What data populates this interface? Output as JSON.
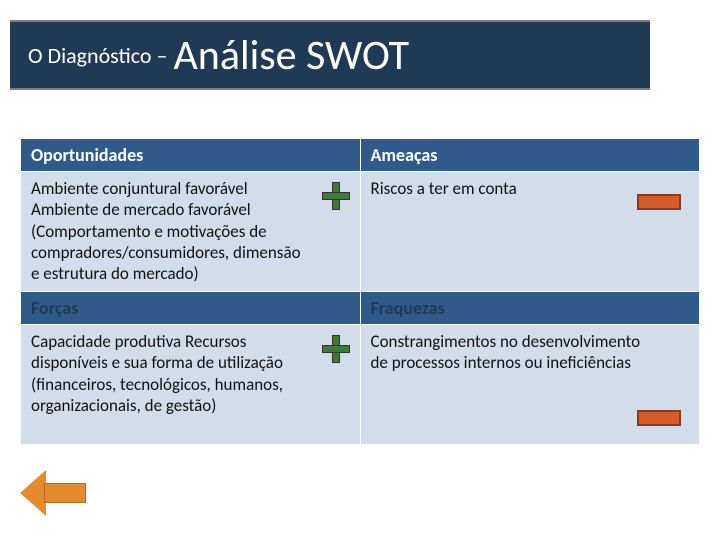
{
  "title": {
    "prefix": "O Diagnóstico –",
    "main": "Análise SWOT"
  },
  "colors": {
    "title_bg": "#1f3a54",
    "header_bg": "#2f5a8a",
    "cell_bg": "#d3dde9",
    "plus": "#3f7a3a",
    "minus": "#d65a2a",
    "arrow": "#e68a2e"
  },
  "swot": {
    "row1": {
      "left_header": "Oportunidades",
      "right_header": "Ameaças",
      "left_content": "Ambiente conjuntural favorável Ambiente de mercado favorável (Comportamento e motivações de compradores/consumidores, dimensão e estrutura do mercado)",
      "right_content": "Riscos a ter em conta"
    },
    "row2": {
      "left_header": "Forças",
      "right_header": "Fraquezas",
      "left_content": "Capacidade produtiva Recursos disponíveis e sua forma de utilização (financeiros, tecnológicos, humanos, organizacionais, de gestão)",
      "right_content": "Constrangimentos no desenvolvimento de processos internos ou ineficiências"
    }
  }
}
